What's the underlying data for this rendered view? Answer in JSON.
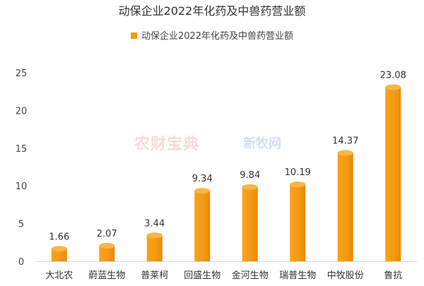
{
  "chart_data": {
    "type": "bar",
    "title": "动保企业2022年化药及中兽药营业额",
    "legend": "动保企业2022年化药及中兽药营业额",
    "legend_position": "top",
    "categories": [
      "大北农",
      "蔚蓝生物",
      "普莱柯",
      "回盛生物",
      "金河生物",
      "瑞普生物",
      "中牧股份",
      "鲁抗"
    ],
    "series": [
      {
        "name": "动保企业2022年化药及中兽药营业额",
        "values": [
          1.66,
          2.07,
          3.44,
          9.34,
          9.84,
          10.19,
          14.37,
          23.08
        ]
      }
    ],
    "ylim": [
      0,
      25
    ],
    "yticks": [
      0,
      5,
      10,
      15,
      20,
      25
    ],
    "grid": false,
    "bar_color": "#f59a12",
    "bar_top_color": "#fbb545"
  },
  "watermarks": [
    "农财宝典",
    "新牧网"
  ]
}
